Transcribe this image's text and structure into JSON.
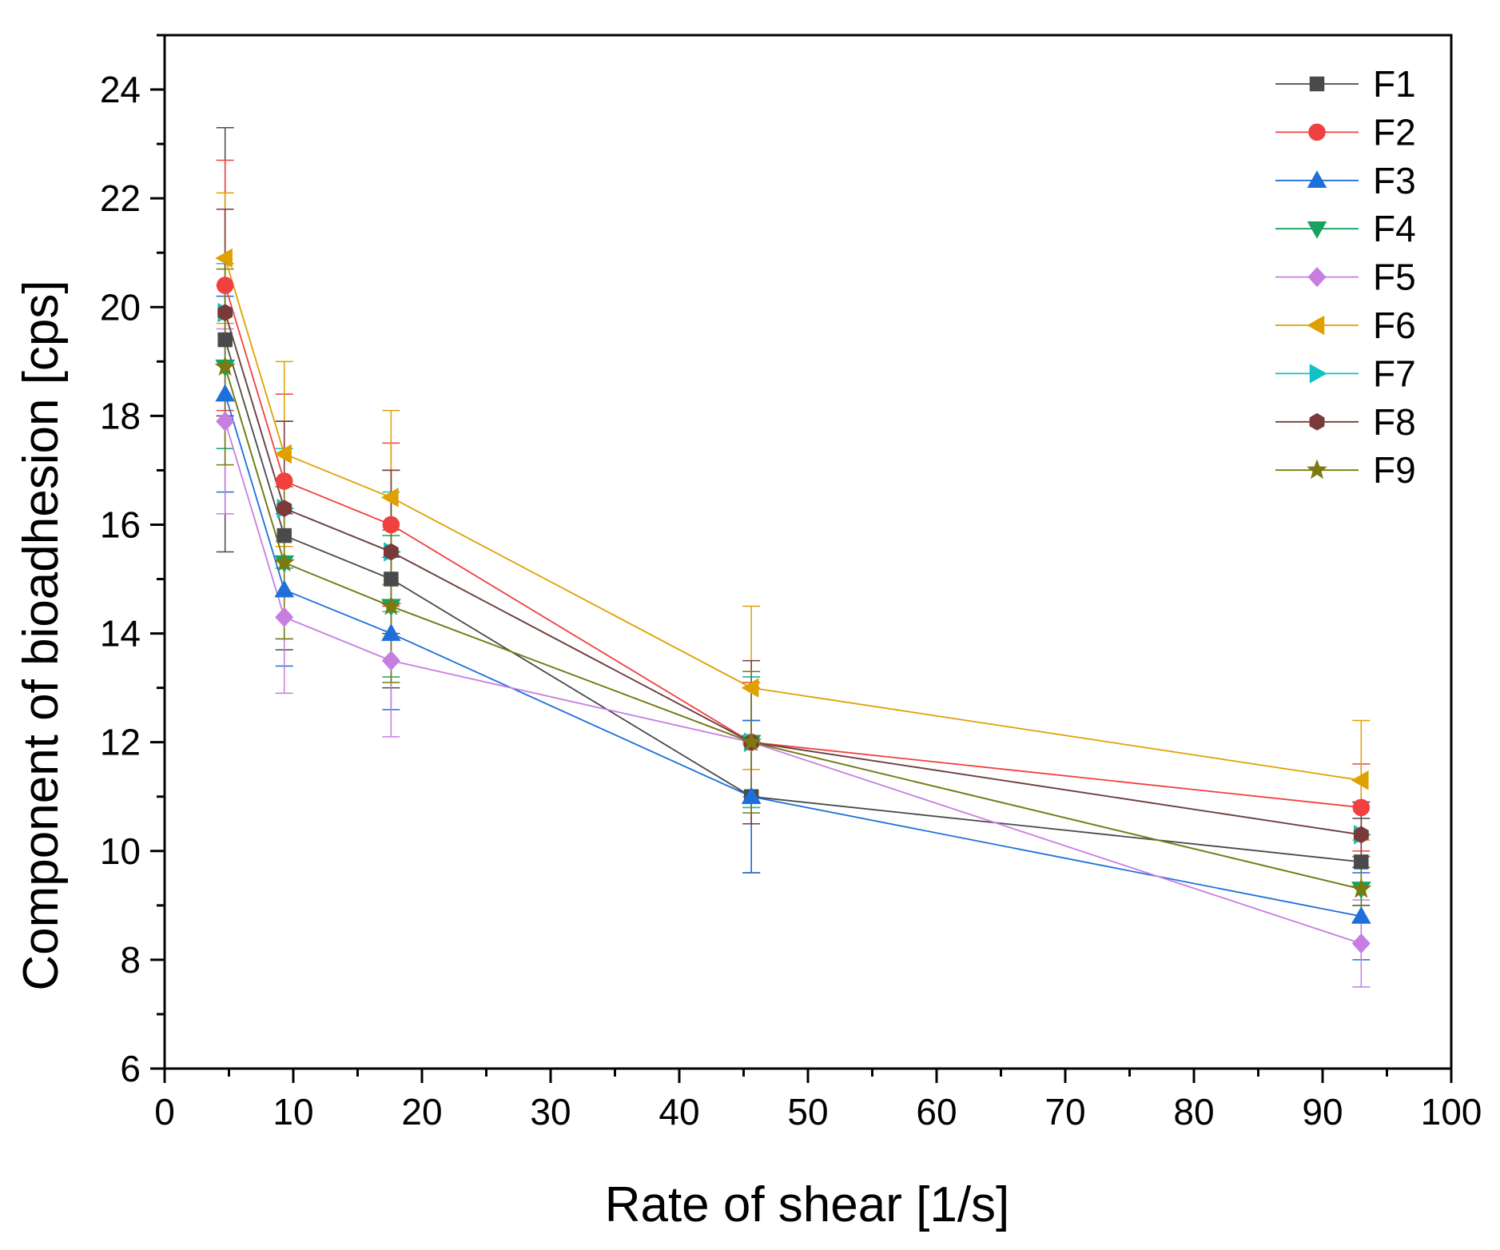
{
  "chart_data": {
    "type": "line",
    "title": "",
    "xlabel": "Rate of shear [1/s]",
    "ylabel": "Component of bioadhesion [cps]",
    "xlim": [
      0,
      100
    ],
    "ylim": [
      6,
      25
    ],
    "xticks": [
      0,
      10,
      20,
      30,
      40,
      50,
      60,
      70,
      80,
      90,
      100
    ],
    "yticks": [
      6,
      8,
      10,
      12,
      14,
      16,
      18,
      20,
      22,
      24
    ],
    "xtick_labels": [
      "0",
      "10",
      "20",
      "30",
      "40",
      "50",
      "60",
      "70",
      "80",
      "90",
      "100"
    ],
    "ytick_labels": [
      "6",
      "8",
      "10",
      "12",
      "14",
      "16",
      "18",
      "20",
      "22",
      "24"
    ],
    "x": [
      4.7,
      9.3,
      17.6,
      45.6,
      93.0
    ],
    "legend_position": "top-right",
    "series": [
      {
        "name": "F1",
        "color": "#4a4a4a",
        "marker": "square",
        "values": [
          19.4,
          15.8,
          15.0,
          11.0,
          9.8
        ],
        "errors": [
          3.9,
          2.1,
          2.0,
          1.4,
          0.8
        ]
      },
      {
        "name": "F2",
        "color": "#f04040",
        "marker": "circle",
        "values": [
          20.4,
          16.8,
          16.0,
          12.0,
          10.8
        ],
        "errors": [
          2.3,
          1.6,
          1.5,
          1.1,
          0.8
        ]
      },
      {
        "name": "F3",
        "color": "#1e6fd9",
        "marker": "triangle-up",
        "values": [
          18.4,
          14.8,
          14.0,
          11.0,
          8.8
        ],
        "errors": [
          1.8,
          1.4,
          1.4,
          1.4,
          0.8
        ]
      },
      {
        "name": "F4",
        "color": "#17a262",
        "marker": "triangle-down",
        "values": [
          18.9,
          15.3,
          14.5,
          12.0,
          9.3
        ],
        "errors": [
          1.5,
          1.4,
          1.3,
          1.2,
          0.6
        ]
      },
      {
        "name": "F5",
        "color": "#c77ee0",
        "marker": "diamond",
        "values": [
          17.9,
          14.3,
          13.5,
          12.0,
          8.3
        ],
        "errors": [
          1.7,
          1.4,
          1.4,
          1.0,
          0.8
        ]
      },
      {
        "name": "F6",
        "color": "#e0a000",
        "marker": "triangle-left",
        "values": [
          20.9,
          17.3,
          16.5,
          13.0,
          11.3
        ],
        "errors": [
          1.2,
          1.7,
          1.6,
          1.5,
          1.1
        ]
      },
      {
        "name": "F7",
        "color": "#10c2c2",
        "marker": "triangle-right",
        "values": [
          19.9,
          16.3,
          15.5,
          12.0,
          10.3
        ],
        "errors": [
          0.9,
          1.1,
          1.1,
          1.2,
          0.6
        ]
      },
      {
        "name": "F8",
        "color": "#7b3a3a",
        "marker": "hexagon",
        "values": [
          19.9,
          16.3,
          15.5,
          12.0,
          10.3
        ],
        "errors": [
          1.9,
          1.6,
          1.5,
          1.5,
          0.6
        ]
      },
      {
        "name": "F9",
        "color": "#7a7a10",
        "marker": "star",
        "values": [
          18.9,
          15.3,
          14.5,
          12.0,
          9.3
        ],
        "errors": [
          1.8,
          1.4,
          1.4,
          1.3,
          0.6
        ]
      }
    ]
  }
}
